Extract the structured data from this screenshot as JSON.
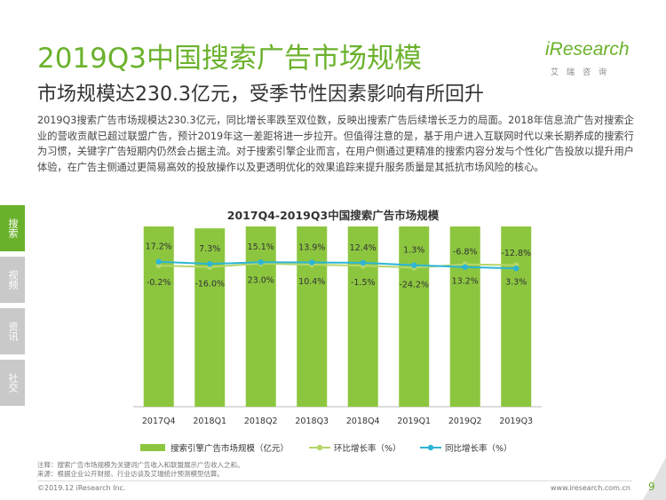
{
  "header": {
    "title": "2019Q3中国搜索广告市场规模",
    "subtitle": "市场规模达230.3亿元，受季节性因素影响有所回升"
  },
  "logo": {
    "brand": "iResearch",
    "cn": "艾瑞咨询"
  },
  "body_text": "2019Q3搜索广告市场规模达230.3亿元，同比增长率跌至双位数，反映出搜索广告后续增长乏力的局面。2018年信息流广告对搜索企业的营收贡献已超过联盟广告，预计2019年这一差距将进一步拉开。但值得注意的是，基于用户进入互联网时代以来长期养成的搜索行为习惯，关键字广告短期内仍然会占据主流。对于搜索引擎企业而言，在用户侧通过更精准的搜索内容分发与个性化广告投放以提升用户体验，在广告主侧通过更简易高效的投放操作以及更透明优化的效果追踪来提升服务质量是其抵抗市场风险的核心。",
  "sidebar": {
    "items": [
      {
        "label": "搜索",
        "active": true
      },
      {
        "label": "视频",
        "active": false
      },
      {
        "label": "资讯",
        "active": false
      },
      {
        "label": "社交",
        "active": false
      }
    ]
  },
  "chart_data": {
    "type": "bar",
    "title": "2017Q4-2019Q3中国搜索广告市场规模",
    "categories": [
      "2017Q4",
      "2018Q1",
      "2018Q2",
      "2018Q3",
      "2018Q4",
      "2019Q1",
      "2019Q2",
      "2019Q3"
    ],
    "series": [
      {
        "name": "搜索引擎广告市场规模（亿元）",
        "type": "bar",
        "values": [
          231.4,
          194.4,
          239.2,
          264.0,
          260.1,
          197.1,
          223.0,
          230.3
        ],
        "labels": [
          "231.4",
          "194.4",
          "239.2",
          "264.0",
          "260.1",
          "197.1",
          "223.0",
          "230.3"
        ]
      },
      {
        "name": "环比增长率（%）",
        "type": "line",
        "values": [
          -0.2,
          -16.0,
          23.0,
          10.4,
          -1.5,
          -24.2,
          13.2,
          3.3
        ],
        "labels": [
          "-0.2%",
          "-16.0%",
          "23.0%",
          "10.4%",
          "-1.5%",
          "-24.2%",
          "13.2%",
          "3.3%"
        ]
      },
      {
        "name": "同比增长率（%）",
        "type": "line",
        "values": [
          17.2,
          7.3,
          15.1,
          13.9,
          12.4,
          1.3,
          -6.8,
          -12.8
        ],
        "labels": [
          "17.2%",
          "7.3%",
          "15.1%",
          "13.9%",
          "12.4%",
          "1.3%",
          "-6.8%",
          "-12.8%"
        ]
      }
    ],
    "colors": {
      "bar": "#8cc63f",
      "qoq": "#b5d66b",
      "yoy": "#2db5d6"
    },
    "grid": false,
    "legend_position": "bottom"
  },
  "legend": {
    "bar": "搜索引擎广告市场规模（亿元）",
    "qoq": "环比增长率（%）",
    "yoy": "同比增长率（%）"
  },
  "footer": {
    "note_line1": "注释：搜索广告市场规模为关键词广告收入和联盟展示广告收入之和。",
    "note_line2": "来源：根据企业公开财报、行业访谈及艾瑞统计预测模型估算。",
    "copyright": "©2019.12 iResearch Inc.",
    "url": "www.iresearch.com.cn",
    "page": "9"
  }
}
